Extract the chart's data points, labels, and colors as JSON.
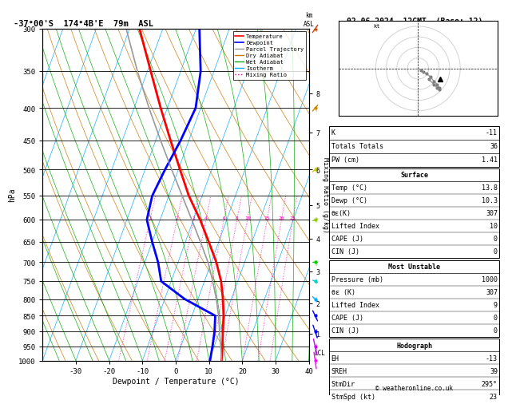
{
  "title_left": "-37°00'S  174°4B'E  79m  ASL",
  "title_right": "02.06.2024  12GMT  (Base: 12)",
  "xlabel": "Dewpoint / Temperature (°C)",
  "ylabel_left": "hPa",
  "pressure_ticks": [
    300,
    350,
    400,
    450,
    500,
    550,
    600,
    650,
    700,
    750,
    800,
    850,
    900,
    950,
    1000
  ],
  "temp_xlim": [
    -40,
    40
  ],
  "temp_xticks": [
    -30,
    -20,
    -10,
    0,
    10,
    20,
    30,
    40
  ],
  "temperature_profile": {
    "temp": [
      13.8,
      12.5,
      11.0,
      9.5,
      7.5,
      5.0,
      1.5,
      -3.0,
      -8.0,
      -14.0,
      -19.5,
      -25.5,
      -32.0,
      -39.0,
      -47.0
    ],
    "pressure": [
      1000,
      950,
      900,
      850,
      800,
      750,
      700,
      650,
      600,
      550,
      500,
      450,
      400,
      350,
      300
    ],
    "color": "red",
    "linewidth": 2.0
  },
  "dewpoint_profile": {
    "temp": [
      10.3,
      9.5,
      8.5,
      7.0,
      -4.0,
      -13.0,
      -16.0,
      -20.0,
      -24.0,
      -25.0,
      -24.0,
      -22.5,
      -21.5,
      -24.0,
      -29.0
    ],
    "pressure": [
      1000,
      950,
      900,
      850,
      800,
      750,
      700,
      650,
      600,
      550,
      500,
      450,
      400,
      350,
      300
    ],
    "color": "blue",
    "linewidth": 2.0
  },
  "parcel_profile": {
    "temp": [
      13.8,
      12.0,
      10.0,
      8.0,
      5.5,
      2.5,
      -1.0,
      -5.5,
      -10.5,
      -16.0,
      -22.0,
      -28.5,
      -35.5,
      -43.0,
      -51.0
    ],
    "pressure": [
      1000,
      950,
      900,
      850,
      800,
      750,
      700,
      650,
      600,
      550,
      500,
      450,
      400,
      350,
      300
    ],
    "color": "#999999",
    "linewidth": 1.2
  },
  "mixing_ratio_values": [
    1,
    2,
    3,
    4,
    6,
    8,
    10,
    15,
    20,
    25
  ],
  "mixing_ratio_color": "#ff00bb",
  "dry_adiabat_color": "#cc7700",
  "wet_adiabat_color": "#00aa00",
  "isotherm_color": "#00aaff",
  "km_ticks": [
    1,
    2,
    3,
    4,
    5,
    6,
    7,
    8
  ],
  "km_pressures": [
    907,
    812,
    724,
    643,
    569,
    500,
    437,
    379
  ],
  "lcl_pressure": 972,
  "info_table": {
    "K": -11,
    "Totals_Totals": 36,
    "PW_cm": 1.41,
    "Surface_Temp": 13.8,
    "Surface_Dewp": 10.3,
    "Surface_theta_e": 307,
    "Surface_LI": 10,
    "Surface_CAPE": 0,
    "Surface_CIN": 0,
    "MU_Pressure": 1000,
    "MU_theta_e": 307,
    "MU_LI": 9,
    "MU_CAPE": 0,
    "MU_CIN": 0,
    "EH": -13,
    "SREH": 39,
    "StmDir": "295°",
    "StmSpd": 23
  },
  "wind_barbs": {
    "pressures": [
      1000,
      950,
      900,
      850,
      800,
      750,
      700,
      600,
      500,
      400,
      300
    ],
    "colors": [
      "#ff00ff",
      "#cc00ff",
      "#0000ff",
      "#0000ff",
      "#00aaff",
      "#00cccc",
      "#00cc00",
      "#88cc00",
      "#cccc00",
      "#cc8800",
      "#cc4400"
    ],
    "speeds_kt": [
      5,
      10,
      12,
      15,
      20,
      25,
      30,
      20,
      15,
      10,
      5
    ],
    "dirs_deg": [
      200,
      210,
      220,
      230,
      250,
      260,
      270,
      280,
      290,
      295,
      300
    ]
  },
  "copyright": "© weatheronline.co.uk"
}
